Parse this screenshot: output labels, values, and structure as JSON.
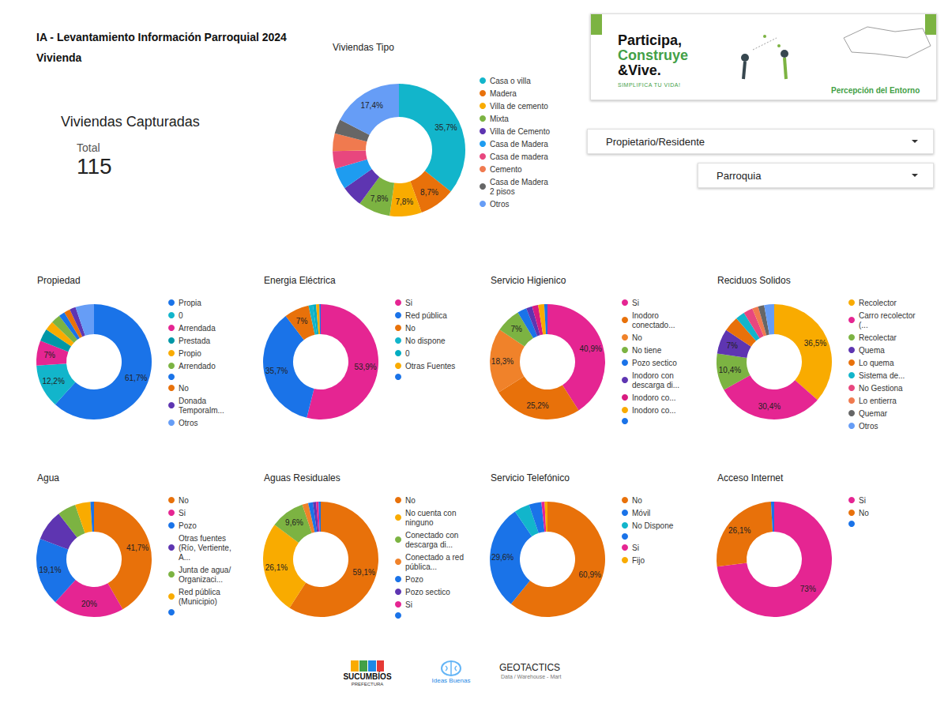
{
  "header": {
    "title": "IA - Levantamiento Información Parroquial 2024",
    "subtitle": "Vivienda"
  },
  "kpi": {
    "title": "Viviendas Capturadas",
    "label": "Total",
    "value": 115
  },
  "banner": {
    "text": "Participa, Construye &Vive.",
    "tagline": "SIMPLIFICA TU VIDA!",
    "caption": "Percepción del Entorno"
  },
  "filters": [
    "Propietario/Residente",
    "Parroquia"
  ],
  "logos": [
    [
      "SUCUMBÍOS",
      "PREFECTURA"
    ],
    [
      "Ideas Buenas"
    ],
    [
      "GEOTACTICS",
      "Data / Warehouse - Mart"
    ]
  ],
  "chart_data": [
    {
      "type": "pie",
      "title": "Viviendas Tipo",
      "legend": "right",
      "data_labels": true,
      "categories": [
        "Casa o villa",
        "Madera",
        "Villa de cemento",
        "Mixta",
        "Villa de Cemento",
        "Casa de Madera",
        "Casa de madera",
        "Cemento",
        "Casa de Madera 2 pisos",
        "Otros"
      ],
      "values": [
        35.7,
        8.7,
        7.8,
        7.8,
        5.2,
        5.2,
        4.3,
        4.3,
        3.5,
        17.4
      ],
      "value_labels": [
        "35,7%",
        "8,7%",
        "7,8%",
        "7,8%",
        null,
        null,
        null,
        null,
        null,
        "17,4%"
      ],
      "colors": [
        "#12b5cb",
        "#e8710a",
        "#f9ab00",
        "#7cb342",
        "#5e35b1",
        "#1e9cf0",
        "#e8477e",
        "#f07a4f",
        "#666666",
        "#669df6"
      ]
    },
    {
      "type": "pie",
      "title": "Propiedad",
      "legend": "right",
      "data_labels": true,
      "categories": [
        "Propia",
        "0",
        "Arrendada",
        "Prestada",
        "Propio",
        "Arrendado",
        null,
        "No",
        "Donada Temporalm...",
        "Otros"
      ],
      "values": [
        61.7,
        12.2,
        7,
        3.5,
        2.6,
        2.6,
        1.7,
        1.7,
        1.7,
        5.2
      ],
      "value_labels": [
        "61,7%",
        "12,2%",
        "7%",
        null,
        null,
        null,
        null,
        null,
        null,
        null
      ],
      "colors": [
        "#1a73e8",
        "#12b5cb",
        "#e52592",
        "#0097a7",
        "#f9ab00",
        "#7cb342",
        "#1a73e8",
        "#e8710a",
        "#5e35b1",
        "#669df6"
      ]
    },
    {
      "type": "pie",
      "title": "Energia Eléctrica",
      "legend": "right",
      "data_labels": true,
      "categories": [
        "Si",
        "Red pública",
        "No",
        "No dispone",
        "0",
        "Otras Fuentes",
        null
      ],
      "values": [
        53.9,
        35.7,
        7,
        1.2,
        0.9,
        0.9,
        0.4
      ],
      "value_labels": [
        "53,9%",
        "35,7%",
        "7%",
        null,
        null,
        null,
        null
      ],
      "colors": [
        "#e52592",
        "#1a73e8",
        "#e8710a",
        "#12b5cb",
        "#00acc1",
        "#f9ab00",
        "#1a73e8"
      ]
    },
    {
      "type": "pie",
      "title": "Servicio Higienico",
      "legend": "right",
      "data_labels": true,
      "categories": [
        "Si",
        "Inodoro conectado...",
        "No",
        "No tiene",
        "Pozo sectico",
        "Inodoro con descarga di...",
        "Inodoro co...",
        "Inodoro co...",
        null
      ],
      "values": [
        40.9,
        25.2,
        18.3,
        7,
        2.6,
        1.7,
        1.7,
        1.7,
        0.9
      ],
      "value_labels": [
        "40,9%",
        "25,2%",
        "18,3%",
        "7%",
        null,
        null,
        null,
        null,
        null
      ],
      "colors": [
        "#e52592",
        "#e8710a",
        "#f0822a",
        "#7cb342",
        "#1a73e8",
        "#5e35b1",
        "#d81b80",
        "#f9ab00",
        "#1a73e8"
      ]
    },
    {
      "type": "pie",
      "title": "Reciduos Solidos",
      "legend": "right",
      "data_labels": true,
      "categories": [
        "Recolector",
        "Carro recolector (...",
        "Recolectar",
        "Quema",
        "Lo quema",
        "Sistema de...",
        "No Gestiona",
        "Lo entierra",
        "Quemar",
        "Otros"
      ],
      "values": [
        36.5,
        30.4,
        10.4,
        7,
        4.3,
        2.6,
        2.6,
        1.7,
        1.7,
        2.8
      ],
      "value_labels": [
        "36,5%",
        "30,4%",
        "10,4%",
        "7%",
        null,
        null,
        null,
        null,
        null,
        null
      ],
      "colors": [
        "#f9ab00",
        "#e52592",
        "#7cb342",
        "#5e35b1",
        "#e8710a",
        "#12b5cb",
        "#e8477e",
        "#f07a4f",
        "#666666",
        "#669df6"
      ]
    },
    {
      "type": "pie",
      "title": "Agua",
      "legend": "right",
      "data_labels": true,
      "categories": [
        "No",
        "Si",
        "Pozo",
        "Otras fuentes (Río, Vertiente, A...",
        "Junta de agua/ Organizaci...",
        "Red pública (Municipio)",
        null
      ],
      "values": [
        41.7,
        20,
        19.1,
        8.7,
        5.2,
        4.3,
        1
      ],
      "value_labels": [
        "41,7%",
        "20%",
        "19,1%",
        null,
        null,
        null,
        null
      ],
      "colors": [
        "#e8710a",
        "#e52592",
        "#1a73e8",
        "#5e35b1",
        "#7cb342",
        "#f9ab00",
        "#1a73e8"
      ]
    },
    {
      "type": "pie",
      "title": "Aguas Residuales",
      "legend": "right",
      "data_labels": true,
      "categories": [
        "No",
        "No cuenta con ninguno",
        "Conectado con descarga di...",
        "Conectado a red pública...",
        "Pozo",
        "Pozo sectico",
        "Si",
        null
      ],
      "values": [
        59.1,
        26.1,
        9.6,
        1.7,
        1.3,
        0.9,
        0.7,
        0.6
      ],
      "value_labels": [
        "59,1%",
        "26,1%",
        "9,6%",
        null,
        null,
        null,
        null,
        null
      ],
      "colors": [
        "#e8710a",
        "#f9ab00",
        "#7cb342",
        "#f0822a",
        "#1a73e8",
        "#5e35b1",
        "#e52592",
        "#1a73e8"
      ]
    },
    {
      "type": "pie",
      "title": "Servicio Telefónico",
      "legend": "right",
      "data_labels": true,
      "categories": [
        "No",
        "Móvil",
        "No Dispone",
        null,
        "Si",
        "Fijo"
      ],
      "values": [
        60.9,
        29.6,
        4.3,
        3.5,
        0.9,
        0.8
      ],
      "value_labels": [
        "60,9%",
        "29,6%",
        null,
        null,
        null,
        null
      ],
      "colors": [
        "#e8710a",
        "#1a73e8",
        "#12b5cb",
        "#1a73e8",
        "#e52592",
        "#f9ab00"
      ]
    },
    {
      "type": "pie",
      "title": "Acceso Internet",
      "legend": "right",
      "data_labels": true,
      "categories": [
        "Si",
        "No",
        null
      ],
      "values": [
        73,
        26.1,
        0.9
      ],
      "value_labels": [
        "73%",
        "26,1%",
        null
      ],
      "colors": [
        "#e52592",
        "#e8710a",
        "#1a73e8"
      ]
    }
  ]
}
